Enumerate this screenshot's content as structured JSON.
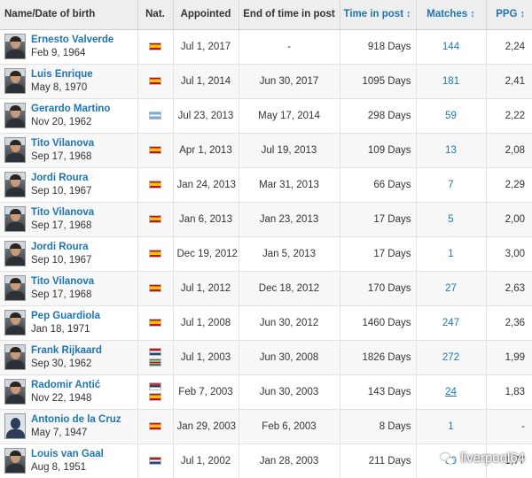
{
  "table": {
    "headers": {
      "name": "Name/Date of birth",
      "nat": "Nat.",
      "appointed": "Appointed",
      "end": "End of time in post",
      "time": "Time in post",
      "matches": "Matches",
      "ppg": "PPG",
      "sort_arrow": "↕"
    },
    "rows": [
      {
        "name": "Ernesto Valverde",
        "dob": "Feb 9, 1964",
        "flags": [
          "es"
        ],
        "appointed": "Jul 1, 2017",
        "end": "-",
        "time": "918 Days",
        "matches": "144",
        "ppg": "2,24"
      },
      {
        "name": "Luis Enrique",
        "dob": "May 8, 1970",
        "flags": [
          "es"
        ],
        "appointed": "Jul 1, 2014",
        "end": "Jun 30, 2017",
        "time": "1095 Days",
        "matches": "181",
        "ppg": "2,41"
      },
      {
        "name": "Gerardo Martino",
        "dob": "Nov 20, 1962",
        "flags": [
          "ar"
        ],
        "appointed": "Jul 23, 2013",
        "end": "May 17, 2014",
        "time": "298 Days",
        "matches": "59",
        "ppg": "2,22"
      },
      {
        "name": "Tito Vilanova",
        "dob": "Sep 17, 1968",
        "flags": [
          "es"
        ],
        "appointed": "Apr 1, 2013",
        "end": "Jul 19, 2013",
        "time": "109 Days",
        "matches": "13",
        "ppg": "2,08"
      },
      {
        "name": "Jordi Roura",
        "dob": "Sep 10, 1967",
        "flags": [
          "es"
        ],
        "appointed": "Jan 24, 2013",
        "end": "Mar 31, 2013",
        "time": "66 Days",
        "matches": "7",
        "ppg": "2,29"
      },
      {
        "name": "Tito Vilanova",
        "dob": "Sep 17, 1968",
        "flags": [
          "es"
        ],
        "appointed": "Jan 6, 2013",
        "end": "Jan 23, 2013",
        "time": "17 Days",
        "matches": "5",
        "ppg": "2,00"
      },
      {
        "name": "Jordi Roura",
        "dob": "Sep 10, 1967",
        "flags": [
          "es"
        ],
        "appointed": "Dec 19, 2012",
        "end": "Jan 5, 2013",
        "time": "17 Days",
        "matches": "1",
        "ppg": "3,00"
      },
      {
        "name": "Tito Vilanova",
        "dob": "Sep 17, 1968",
        "flags": [
          "es"
        ],
        "appointed": "Jul 1, 2012",
        "end": "Dec 18, 2012",
        "time": "170 Days",
        "matches": "27",
        "ppg": "2,63"
      },
      {
        "name": "Pep Guardiola",
        "dob": "Jan 18, 1971",
        "flags": [
          "es"
        ],
        "appointed": "Jul 1, 2008",
        "end": "Jun 30, 2012",
        "time": "1460 Days",
        "matches": "247",
        "ppg": "2,36"
      },
      {
        "name": "Frank Rijkaard",
        "dob": "Sep 30, 1962",
        "flags": [
          "nl",
          "sr"
        ],
        "appointed": "Jul 1, 2003",
        "end": "Jun 30, 2008",
        "time": "1826 Days",
        "matches": "272",
        "ppg": "1,99"
      },
      {
        "name": "Radomir Antić",
        "dob": "Nov 22, 1948",
        "flags": [
          "rs",
          "es"
        ],
        "appointed": "Feb 7, 2003",
        "end": "Jun 30, 2003",
        "time": "143 Days",
        "matches": "24",
        "ppg": "1,83"
      },
      {
        "name": "Antonio de la Cruz",
        "dob": "May 7, 1947",
        "flags": [
          "es"
        ],
        "appointed": "Jan 29, 2003",
        "end": "Feb 6, 2003",
        "time": "8 Days",
        "matches": "1",
        "ppg": "-"
      },
      {
        "name": "Louis van Gaal",
        "dob": "Aug 8, 1951",
        "flags": [
          "nl"
        ],
        "appointed": "Jul 1, 2002",
        "end": "Jan 28, 2003",
        "time": "211 Days",
        "matches": "30",
        "ppg": "1,77"
      }
    ]
  },
  "watermark": {
    "text": "liverpool64",
    "icon": "wechat-icon"
  },
  "colors": {
    "link": "#1d75b3",
    "header_bg": "#eeeeee"
  }
}
